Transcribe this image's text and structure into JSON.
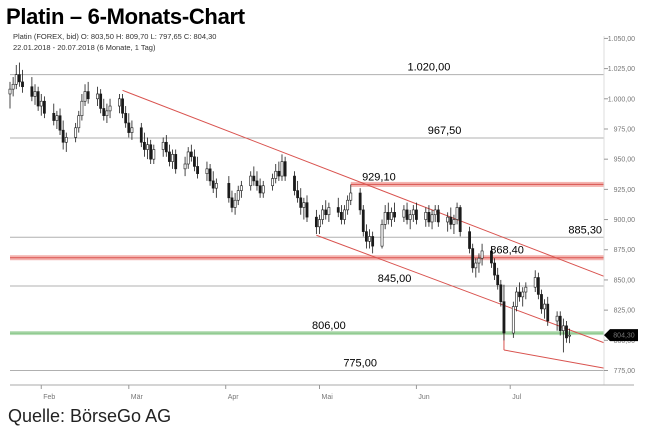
{
  "title": "Platin – 6-Monats-Chart",
  "info_line1": "Platin (FOREX, bid) O: 803,50 H: 809,70 L: 797,65 C: 804,30",
  "info_line2": "22.01.2018 - 20.07.2018 (6 Monate, 1 Tag)",
  "source": "Quelle: BörseGo AG",
  "colors": {
    "candle": "#1a1a1a",
    "channel": "#d9534f",
    "resistance": "#f4b4b0",
    "support": "#b9dfb9",
    "hline": "#b0b0b0"
  },
  "chart_data": {
    "type": "candlestick",
    "ylim": [
      763,
      1052
    ],
    "y_ticks": [
      775,
      800,
      825,
      850,
      875,
      900,
      925,
      950,
      975,
      1000,
      1025,
      1050
    ],
    "y_tick_labels": [
      "775,00",
      "800,00",
      "825,00",
      "850,00",
      "875,00",
      "900,00",
      "925,00",
      "950,00",
      "975,00",
      "1.000,00",
      "1.025,00",
      "1.050,00"
    ],
    "x_range": [
      "2018-01-22",
      "2018-07-31"
    ],
    "x_ticks": [
      {
        "date": "2018-02-01",
        "label": "Feb"
      },
      {
        "date": "2018-03-01",
        "label": "Mär"
      },
      {
        "date": "2018-04-01",
        "label": "Apr"
      },
      {
        "date": "2018-05-01",
        "label": "Mai"
      },
      {
        "date": "2018-06-01",
        "label": "Jun"
      },
      {
        "date": "2018-07-01",
        "label": "Jul"
      }
    ],
    "last_price_label": "804,30",
    "last_price": 804.3,
    "levels": [
      {
        "value": 1020.0,
        "label": "1.020,00",
        "style": "gray",
        "label_date": "2018-06-05"
      },
      {
        "value": 967.5,
        "label": "967,50",
        "style": "gray",
        "label_date": "2018-06-10"
      },
      {
        "value": 929.1,
        "label": "929,10",
        "style": "red",
        "label_date": "2018-05-20",
        "start_date": "2018-05-11"
      },
      {
        "value": 885.3,
        "label": "885,30",
        "style": "gray",
        "label_date": "2018-07-25"
      },
      {
        "value": 868.4,
        "label": "868,40",
        "style": "red",
        "label_date": "2018-06-30"
      },
      {
        "value": 845.0,
        "label": "845,00",
        "style": "gray",
        "label_date": "2018-05-25"
      },
      {
        "value": 806.0,
        "label": "806,00",
        "style": "green",
        "label_date": "2018-05-04"
      },
      {
        "value": 775.0,
        "label": "775,00",
        "style": "gray",
        "label_date": "2018-05-14"
      }
    ],
    "trendlines": [
      {
        "start": {
          "date": "2018-02-27",
          "value": 1007
        },
        "end": {
          "date": "2018-07-31",
          "value": 853
        }
      },
      {
        "start": {
          "date": "2018-04-30",
          "value": 887
        },
        "end": {
          "date": "2018-07-31",
          "value": 798
        }
      },
      {
        "start": {
          "date": "2018-06-29",
          "value": 792
        },
        "end": {
          "date": "2018-07-31",
          "value": 777
        }
      }
    ],
    "markers": [
      {
        "date": "2018-06-29",
        "from": 822,
        "to": 792
      }
    ],
    "candles": [
      {
        "d": "2018-01-22",
        "o": 1004,
        "h": 1014,
        "l": 992,
        "c": 1008
      },
      {
        "d": "2018-01-23",
        "o": 1008,
        "h": 1018,
        "l": 1002,
        "c": 1012
      },
      {
        "d": "2018-01-24",
        "o": 1012,
        "h": 1028,
        "l": 1008,
        "c": 1020
      },
      {
        "d": "2018-01-25",
        "o": 1020,
        "h": 1030,
        "l": 1010,
        "c": 1014
      },
      {
        "d": "2018-01-26",
        "o": 1014,
        "h": 1024,
        "l": 1005,
        "c": 1010
      },
      {
        "d": "2018-01-29",
        "o": 1010,
        "h": 1018,
        "l": 998,
        "c": 1002
      },
      {
        "d": "2018-01-30",
        "o": 1002,
        "h": 1012,
        "l": 995,
        "c": 1006
      },
      {
        "d": "2018-01-31",
        "o": 1006,
        "h": 1010,
        "l": 990,
        "c": 994
      },
      {
        "d": "2018-02-01",
        "o": 994,
        "h": 1004,
        "l": 986,
        "c": 998
      },
      {
        "d": "2018-02-02",
        "o": 998,
        "h": 1002,
        "l": 984,
        "c": 988
      },
      {
        "d": "2018-02-05",
        "o": 988,
        "h": 996,
        "l": 978,
        "c": 982
      },
      {
        "d": "2018-02-06",
        "o": 982,
        "h": 990,
        "l": 975,
        "c": 986
      },
      {
        "d": "2018-02-07",
        "o": 986,
        "h": 992,
        "l": 970,
        "c": 974
      },
      {
        "d": "2018-02-08",
        "o": 974,
        "h": 982,
        "l": 958,
        "c": 964
      },
      {
        "d": "2018-02-09",
        "o": 964,
        "h": 972,
        "l": 956,
        "c": 968
      },
      {
        "d": "2018-02-12",
        "o": 968,
        "h": 980,
        "l": 964,
        "c": 976
      },
      {
        "d": "2018-02-13",
        "o": 976,
        "h": 990,
        "l": 972,
        "c": 986
      },
      {
        "d": "2018-02-14",
        "o": 986,
        "h": 1004,
        "l": 982,
        "c": 998
      },
      {
        "d": "2018-02-15",
        "o": 998,
        "h": 1012,
        "l": 994,
        "c": 1006
      },
      {
        "d": "2018-02-16",
        "o": 1006,
        "h": 1014,
        "l": 996,
        "c": 1000
      },
      {
        "d": "2018-02-19",
        "o": 1000,
        "h": 1010,
        "l": 994,
        "c": 1004
      },
      {
        "d": "2018-02-20",
        "o": 1004,
        "h": 1008,
        "l": 988,
        "c": 992
      },
      {
        "d": "2018-02-21",
        "o": 992,
        "h": 1000,
        "l": 982,
        "c": 986
      },
      {
        "d": "2018-02-22",
        "o": 986,
        "h": 996,
        "l": 980,
        "c": 990
      },
      {
        "d": "2018-02-23",
        "o": 990,
        "h": 1000,
        "l": 984,
        "c": 994
      },
      {
        "d": "2018-02-26",
        "o": 994,
        "h": 1004,
        "l": 988,
        "c": 1000
      },
      {
        "d": "2018-02-27",
        "o": 1000,
        "h": 1004,
        "l": 984,
        "c": 988
      },
      {
        "d": "2018-02-28",
        "o": 988,
        "h": 994,
        "l": 976,
        "c": 980
      },
      {
        "d": "2018-03-01",
        "o": 980,
        "h": 988,
        "l": 968,
        "c": 972
      },
      {
        "d": "2018-03-02",
        "o": 972,
        "h": 982,
        "l": 966,
        "c": 976
      },
      {
        "d": "2018-03-05",
        "o": 976,
        "h": 980,
        "l": 960,
        "c": 964
      },
      {
        "d": "2018-03-06",
        "o": 964,
        "h": 972,
        "l": 952,
        "c": 958
      },
      {
        "d": "2018-03-07",
        "o": 958,
        "h": 968,
        "l": 950,
        "c": 962
      },
      {
        "d": "2018-03-08",
        "o": 962,
        "h": 966,
        "l": 946,
        "c": 950
      },
      {
        "d": "2018-03-09",
        "o": 950,
        "h": 962,
        "l": 946,
        "c": 958
      },
      {
        "d": "2018-03-12",
        "o": 958,
        "h": 968,
        "l": 952,
        "c": 964
      },
      {
        "d": "2018-03-13",
        "o": 964,
        "h": 970,
        "l": 952,
        "c": 956
      },
      {
        "d": "2018-03-14",
        "o": 956,
        "h": 962,
        "l": 944,
        "c": 948
      },
      {
        "d": "2018-03-15",
        "o": 948,
        "h": 958,
        "l": 942,
        "c": 954
      },
      {
        "d": "2018-03-16",
        "o": 954,
        "h": 958,
        "l": 938,
        "c": 942
      },
      {
        "d": "2018-03-19",
        "o": 942,
        "h": 952,
        "l": 936,
        "c": 946
      },
      {
        "d": "2018-03-20",
        "o": 946,
        "h": 960,
        "l": 942,
        "c": 956
      },
      {
        "d": "2018-03-21",
        "o": 956,
        "h": 962,
        "l": 948,
        "c": 952
      },
      {
        "d": "2018-03-22",
        "o": 952,
        "h": 958,
        "l": 940,
        "c": 944
      },
      {
        "d": "2018-03-23",
        "o": 944,
        "h": 952,
        "l": 934,
        "c": 938
      },
      {
        "d": "2018-03-26",
        "o": 938,
        "h": 948,
        "l": 932,
        "c": 942
      },
      {
        "d": "2018-03-27",
        "o": 942,
        "h": 946,
        "l": 928,
        "c": 932
      },
      {
        "d": "2018-03-28",
        "o": 932,
        "h": 940,
        "l": 922,
        "c": 926
      },
      {
        "d": "2018-03-29",
        "o": 926,
        "h": 934,
        "l": 918,
        "c": 930
      },
      {
        "d": "2018-04-02",
        "o": 930,
        "h": 936,
        "l": 914,
        "c": 918
      },
      {
        "d": "2018-04-03",
        "o": 918,
        "h": 924,
        "l": 906,
        "c": 910
      },
      {
        "d": "2018-04-04",
        "o": 910,
        "h": 922,
        "l": 904,
        "c": 916
      },
      {
        "d": "2018-04-05",
        "o": 916,
        "h": 928,
        "l": 912,
        "c": 924
      },
      {
        "d": "2018-04-06",
        "o": 924,
        "h": 932,
        "l": 918,
        "c": 928
      },
      {
        "d": "2018-04-09",
        "o": 928,
        "h": 940,
        "l": 924,
        "c": 936
      },
      {
        "d": "2018-04-10",
        "o": 936,
        "h": 944,
        "l": 928,
        "c": 932
      },
      {
        "d": "2018-04-11",
        "o": 932,
        "h": 940,
        "l": 924,
        "c": 928
      },
      {
        "d": "2018-04-12",
        "o": 928,
        "h": 934,
        "l": 918,
        "c": 922
      },
      {
        "d": "2018-04-13",
        "o": 922,
        "h": 932,
        "l": 918,
        "c": 928
      },
      {
        "d": "2018-04-16",
        "o": 928,
        "h": 938,
        "l": 924,
        "c": 934
      },
      {
        "d": "2018-04-17",
        "o": 934,
        "h": 946,
        "l": 930,
        "c": 940
      },
      {
        "d": "2018-04-18",
        "o": 940,
        "h": 948,
        "l": 932,
        "c": 936
      },
      {
        "d": "2018-04-19",
        "o": 936,
        "h": 954,
        "l": 932,
        "c": 948
      },
      {
        "d": "2018-04-20",
        "o": 948,
        "h": 952,
        "l": 932,
        "c": 936
      },
      {
        "d": "2018-04-23",
        "o": 936,
        "h": 940,
        "l": 920,
        "c": 924
      },
      {
        "d": "2018-04-24",
        "o": 924,
        "h": 932,
        "l": 914,
        "c": 918
      },
      {
        "d": "2018-04-25",
        "o": 918,
        "h": 926,
        "l": 904,
        "c": 910
      },
      {
        "d": "2018-04-26",
        "o": 910,
        "h": 918,
        "l": 900,
        "c": 914
      },
      {
        "d": "2018-04-27",
        "o": 914,
        "h": 920,
        "l": 898,
        "c": 902
      },
      {
        "d": "2018-04-30",
        "o": 902,
        "h": 908,
        "l": 888,
        "c": 894
      },
      {
        "d": "2018-05-01",
        "o": 894,
        "h": 904,
        "l": 888,
        "c": 900
      },
      {
        "d": "2018-05-02",
        "o": 900,
        "h": 912,
        "l": 896,
        "c": 908
      },
      {
        "d": "2018-05-03",
        "o": 908,
        "h": 916,
        "l": 900,
        "c": 904
      },
      {
        "d": "2018-05-04",
        "o": 904,
        "h": 914,
        "l": 898,
        "c": 910
      },
      {
        "d": "2018-05-07",
        "o": 910,
        "h": 918,
        "l": 902,
        "c": 906
      },
      {
        "d": "2018-05-08",
        "o": 906,
        "h": 912,
        "l": 896,
        "c": 900
      },
      {
        "d": "2018-05-09",
        "o": 900,
        "h": 912,
        "l": 896,
        "c": 908
      },
      {
        "d": "2018-05-10",
        "o": 908,
        "h": 920,
        "l": 904,
        "c": 916
      },
      {
        "d": "2018-05-11",
        "o": 916,
        "h": 929,
        "l": 912,
        "c": 922
      },
      {
        "d": "2018-05-14",
        "o": 922,
        "h": 926,
        "l": 904,
        "c": 908
      },
      {
        "d": "2018-05-15",
        "o": 908,
        "h": 912,
        "l": 886,
        "c": 890
      },
      {
        "d": "2018-05-16",
        "o": 890,
        "h": 896,
        "l": 876,
        "c": 882
      },
      {
        "d": "2018-05-17",
        "o": 882,
        "h": 892,
        "l": 876,
        "c": 886
      },
      {
        "d": "2018-05-18",
        "o": 886,
        "h": 890,
        "l": 872,
        "c": 878
      },
      {
        "d": "2018-05-21",
        "o": 878,
        "h": 900,
        "l": 876,
        "c": 896
      },
      {
        "d": "2018-05-22",
        "o": 896,
        "h": 912,
        "l": 892,
        "c": 906
      },
      {
        "d": "2018-05-23",
        "o": 906,
        "h": 914,
        "l": 896,
        "c": 900
      },
      {
        "d": "2018-05-24",
        "o": 900,
        "h": 910,
        "l": 894,
        "c": 906
      },
      {
        "d": "2018-05-25",
        "o": 906,
        "h": 914,
        "l": 898,
        "c": 902
      },
      {
        "d": "2018-05-28",
        "o": 902,
        "h": 912,
        "l": 898,
        "c": 908
      },
      {
        "d": "2018-05-29",
        "o": 908,
        "h": 914,
        "l": 896,
        "c": 900
      },
      {
        "d": "2018-05-30",
        "o": 900,
        "h": 908,
        "l": 892,
        "c": 904
      },
      {
        "d": "2018-05-31",
        "o": 904,
        "h": 912,
        "l": 898,
        "c": 908
      },
      {
        "d": "2018-06-01",
        "o": 908,
        "h": 914,
        "l": 896,
        "c": 900
      },
      {
        "d": "2018-06-04",
        "o": 900,
        "h": 910,
        "l": 894,
        "c": 906
      },
      {
        "d": "2018-06-05",
        "o": 906,
        "h": 912,
        "l": 894,
        "c": 898
      },
      {
        "d": "2018-06-06",
        "o": 898,
        "h": 908,
        "l": 892,
        "c": 904
      },
      {
        "d": "2018-06-07",
        "o": 904,
        "h": 912,
        "l": 898,
        "c": 908
      },
      {
        "d": "2018-06-08",
        "o": 908,
        "h": 912,
        "l": 894,
        "c": 898
      },
      {
        "d": "2018-06-11",
        "o": 898,
        "h": 906,
        "l": 890,
        "c": 902
      },
      {
        "d": "2018-06-12",
        "o": 902,
        "h": 910,
        "l": 892,
        "c": 896
      },
      {
        "d": "2018-06-13",
        "o": 896,
        "h": 904,
        "l": 888,
        "c": 900
      },
      {
        "d": "2018-06-14",
        "o": 900,
        "h": 914,
        "l": 896,
        "c": 910
      },
      {
        "d": "2018-06-15",
        "o": 910,
        "h": 912,
        "l": 886,
        "c": 890
      },
      {
        "d": "2018-06-18",
        "o": 890,
        "h": 894,
        "l": 872,
        "c": 876
      },
      {
        "d": "2018-06-19",
        "o": 876,
        "h": 880,
        "l": 856,
        "c": 860
      },
      {
        "d": "2018-06-20",
        "o": 860,
        "h": 868,
        "l": 852,
        "c": 864
      },
      {
        "d": "2018-06-21",
        "o": 864,
        "h": 872,
        "l": 856,
        "c": 868
      },
      {
        "d": "2018-06-22",
        "o": 868,
        "h": 880,
        "l": 862,
        "c": 874
      },
      {
        "d": "2018-06-25",
        "o": 874,
        "h": 878,
        "l": 860,
        "c": 864
      },
      {
        "d": "2018-06-26",
        "o": 864,
        "h": 868,
        "l": 850,
        "c": 854
      },
      {
        "d": "2018-06-27",
        "o": 854,
        "h": 860,
        "l": 842,
        "c": 846
      },
      {
        "d": "2018-06-28",
        "o": 846,
        "h": 850,
        "l": 828,
        "c": 832
      },
      {
        "d": "2018-06-29",
        "o": 832,
        "h": 846,
        "l": 800,
        "c": 806
      },
      {
        "d": "2018-07-02",
        "o": 806,
        "h": 832,
        "l": 802,
        "c": 828
      },
      {
        "d": "2018-07-03",
        "o": 828,
        "h": 844,
        "l": 824,
        "c": 840
      },
      {
        "d": "2018-07-04",
        "o": 840,
        "h": 848,
        "l": 832,
        "c": 836
      },
      {
        "d": "2018-07-05",
        "o": 836,
        "h": 844,
        "l": 828,
        "c": 840
      },
      {
        "d": "2018-07-06",
        "o": 840,
        "h": 848,
        "l": 834,
        "c": 844
      },
      {
        "d": "2018-07-09",
        "o": 844,
        "h": 858,
        "l": 840,
        "c": 852
      },
      {
        "d": "2018-07-10",
        "o": 852,
        "h": 856,
        "l": 834,
        "c": 838
      },
      {
        "d": "2018-07-11",
        "o": 838,
        "h": 842,
        "l": 822,
        "c": 826
      },
      {
        "d": "2018-07-12",
        "o": 826,
        "h": 834,
        "l": 818,
        "c": 830
      },
      {
        "d": "2018-07-13",
        "o": 830,
        "h": 836,
        "l": 812,
        "c": 816
      },
      {
        "d": "2018-07-16",
        "o": 816,
        "h": 824,
        "l": 808,
        "c": 820
      },
      {
        "d": "2018-07-17",
        "o": 820,
        "h": 824,
        "l": 804,
        "c": 808
      },
      {
        "d": "2018-07-18",
        "o": 808,
        "h": 818,
        "l": 790,
        "c": 812
      },
      {
        "d": "2018-07-19",
        "o": 812,
        "h": 816,
        "l": 798,
        "c": 802
      },
      {
        "d": "2018-07-20",
        "o": 803.5,
        "h": 809.7,
        "l": 797.65,
        "c": 804.3
      }
    ]
  }
}
